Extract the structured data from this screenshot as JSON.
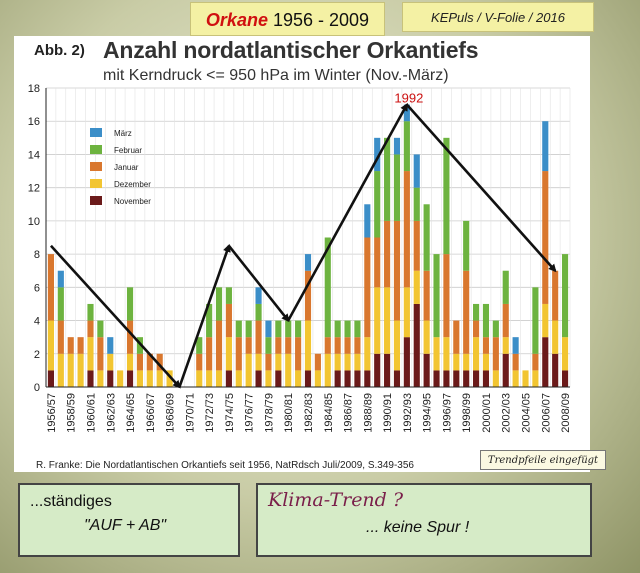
{
  "header": {
    "title_word": "Orkane",
    "title_years": "1956 - 2009",
    "credit": "KEPuls / V-Folie / 2016"
  },
  "figure": {
    "number": "Abb. 2)",
    "title": "Anzahl nordatlantischer Orkantiefs",
    "subtitle": "mit Kerndruck <= 950 hPa im Winter (Nov.-März)",
    "source": "R. Franke: Die Nordatlantischen Orkantiefs seit 1956, NatRdsch Juli/2009, S.349-356",
    "note": "Trendpfeile eingefügt"
  },
  "boxes": {
    "left_line1": "...ständiges",
    "left_line2": "\"AUF + AB\"",
    "right_line1": "Klima-Trend ?",
    "right_line2": "... keine Spur !"
  },
  "colors": {
    "maerz": "#3b8ec8",
    "februar": "#6db33f",
    "januar": "#d9772e",
    "dezember": "#f2c531",
    "november": "#6b1a1a",
    "arrow": "#111111",
    "peak_label": "#cc1111"
  },
  "chart_data": {
    "type": "bar",
    "stacked": true,
    "ylim": [
      0,
      18
    ],
    "yticks": [
      0,
      2,
      4,
      6,
      8,
      10,
      12,
      14,
      16,
      18
    ],
    "grid": true,
    "legend_position": "top-left",
    "x_tick_labels": [
      "1956/57",
      "1958/59",
      "1960/61",
      "1962/63",
      "1964/65",
      "1966/67",
      "1968/69",
      "1970/71",
      "1972/73",
      "1974/75",
      "1976/77",
      "1978/79",
      "1980/81",
      "1982/83",
      "1984/85",
      "1986/87",
      "1988/89",
      "1990/91",
      "1992/93",
      "1994/95",
      "1996/97",
      "1998/99",
      "2000/01",
      "2002/03",
      "2004/05",
      "2006/07",
      "2008/09"
    ],
    "categories": [
      "1956/57",
      "1957/58",
      "1958/59",
      "1959/60",
      "1960/61",
      "1961/62",
      "1962/63",
      "1963/64",
      "1964/65",
      "1965/66",
      "1966/67",
      "1967/68",
      "1968/69",
      "1969/70",
      "1970/71",
      "1971/72",
      "1972/73",
      "1973/74",
      "1974/75",
      "1975/76",
      "1976/77",
      "1977/78",
      "1978/79",
      "1979/80",
      "1980/81",
      "1981/82",
      "1982/83",
      "1983/84",
      "1984/85",
      "1985/86",
      "1986/87",
      "1987/88",
      "1988/89",
      "1989/90",
      "1990/91",
      "1991/92",
      "1992/93",
      "1993/94",
      "1994/95",
      "1995/96",
      "1996/97",
      "1997/98",
      "1998/99",
      "1999/00",
      "2000/01",
      "2001/02",
      "2002/03",
      "2003/04",
      "2004/05",
      "2005/06",
      "2006/07",
      "2007/08",
      "2008/09"
    ],
    "series": [
      {
        "name": "November",
        "values": [
          1,
          0,
          0,
          0,
          1,
          0,
          1,
          0,
          1,
          0,
          0,
          0,
          0,
          0,
          0,
          0,
          0,
          0,
          1,
          0,
          0,
          1,
          0,
          1,
          0,
          0,
          1,
          0,
          0,
          1,
          1,
          1,
          1,
          2,
          2,
          1,
          3,
          5,
          2,
          1,
          1,
          1,
          1,
          1,
          1,
          0,
          2,
          0,
          0,
          0,
          3,
          2,
          1
        ]
      },
      {
        "name": "Dezember",
        "values": [
          3,
          2,
          2,
          2,
          2,
          1,
          1,
          1,
          1,
          1,
          1,
          1,
          1,
          0,
          0,
          1,
          1,
          1,
          2,
          1,
          2,
          1,
          1,
          1,
          2,
          1,
          3,
          1,
          2,
          1,
          1,
          1,
          2,
          4,
          4,
          3,
          3,
          2,
          2,
          2,
          2,
          1,
          1,
          2,
          1,
          1,
          1,
          1,
          1,
          1,
          2,
          2,
          2
        ]
      },
      {
        "name": "Januar",
        "values": [
          4,
          2,
          1,
          1,
          1,
          2,
          0,
          0,
          2,
          1,
          1,
          1,
          0,
          0,
          0,
          1,
          2,
          3,
          2,
          2,
          1,
          2,
          1,
          1,
          1,
          2,
          3,
          1,
          1,
          1,
          1,
          1,
          6,
          3,
          4,
          6,
          7,
          3,
          3,
          0,
          5,
          2,
          5,
          1,
          1,
          2,
          2,
          1,
          0,
          1,
          8,
          3,
          0
        ]
      },
      {
        "name": "Februar",
        "values": [
          0,
          2,
          0,
          0,
          1,
          1,
          0,
          0,
          2,
          1,
          0,
          0,
          0,
          0,
          0,
          1,
          2,
          2,
          1,
          1,
          1,
          1,
          1,
          1,
          1,
          1,
          0,
          0,
          6,
          1,
          1,
          1,
          0,
          4,
          5,
          4,
          3,
          2,
          4,
          5,
          7,
          0,
          3,
          1,
          2,
          1,
          2,
          0,
          0,
          4,
          0,
          0,
          5
        ]
      },
      {
        "name": "März",
        "values": [
          0,
          1,
          0,
          0,
          0,
          0,
          1,
          0,
          0,
          0,
          0,
          0,
          0,
          0,
          0,
          0,
          0,
          0,
          0,
          0,
          0,
          1,
          1,
          0,
          0,
          0,
          1,
          0,
          0,
          0,
          0,
          0,
          2,
          2,
          0,
          1,
          1,
          2,
          0,
          0,
          0,
          0,
          0,
          0,
          0,
          0,
          0,
          1,
          0,
          0,
          3,
          0,
          0
        ]
      }
    ],
    "annotations": [
      "1992"
    ],
    "trend_arrows": [
      {
        "from": [
          "1956/57",
          8.5
        ],
        "to": [
          "1969/70",
          0
        ]
      },
      {
        "from": [
          "1969/70",
          0
        ],
        "to": [
          "1974/75",
          8.5
        ]
      },
      {
        "from": [
          "1974/75",
          8.5
        ],
        "to": [
          "1980/81",
          4
        ]
      },
      {
        "from": [
          "1980/81",
          4
        ],
        "to": [
          "1992/93",
          17
        ]
      },
      {
        "from": [
          "1992/93",
          17
        ],
        "to": [
          "2007/08",
          7
        ]
      }
    ]
  }
}
